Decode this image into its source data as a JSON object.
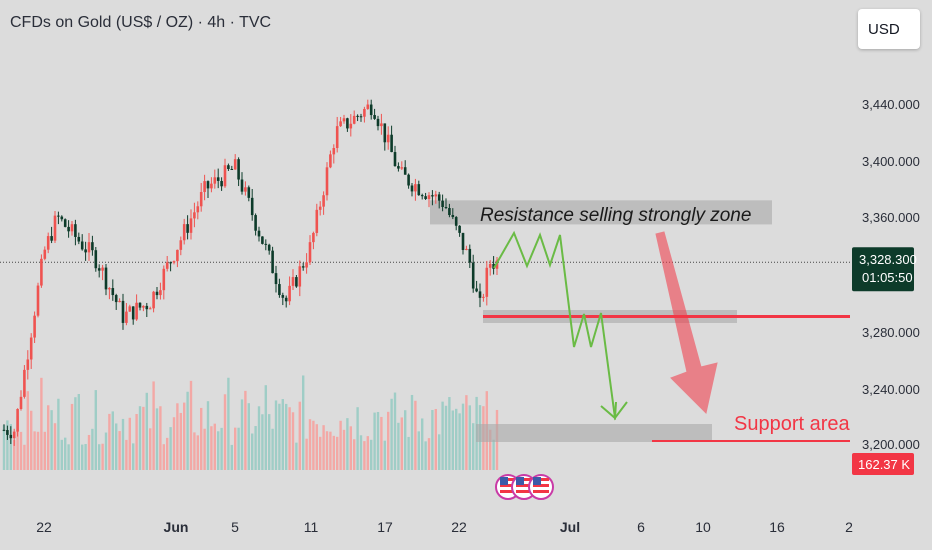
{
  "header": {
    "title": "CFDs on Gold (US$ / OZ) · 4h · TVC",
    "currency_label": "USD"
  },
  "price_axis": {
    "ticks": [
      "3,440.000",
      "3,400.000",
      "3,360.000",
      "3,280.000",
      "3,240.000",
      "3,200.000"
    ],
    "current_price_label": "3,328.300",
    "countdown_label": "01:05:50",
    "volume_label": "162.37 K"
  },
  "time_axis": {
    "ticks": [
      "22",
      "Jun",
      "5",
      "11",
      "17",
      "22",
      "Jul",
      "6",
      "10",
      "16",
      "2"
    ]
  },
  "annotations": {
    "resistance_label": "Resistance selling strongly zone",
    "support_label": "Support area"
  },
  "colors": {
    "up": "#ef5350",
    "down": "#0d3b2a",
    "vol_up": "#f3a8a5",
    "vol_down": "#9fcdc6",
    "forecast": "#6abb45",
    "accent_red": "#f23645"
  },
  "chart_data": {
    "type": "candlestick",
    "title": "CFDs on Gold (US$ / OZ) · 4h · TVC",
    "y_unit": "USD",
    "ylim": [
      3190,
      3480
    ],
    "grid": false,
    "key_points": [
      {
        "x": "May 20",
        "close": 3210
      },
      {
        "x": "May 22",
        "close": 3335
      },
      {
        "x": "May 23",
        "close": 3360
      },
      {
        "x": "May 26",
        "close": 3330
      },
      {
        "x": "May 28",
        "close": 3290
      },
      {
        "x": "May 30",
        "close": 3300
      },
      {
        "x": "Jun 3",
        "close": 3380
      },
      {
        "x": "Jun 5",
        "close": 3395
      },
      {
        "x": "Jun 9",
        "close": 3300
      },
      {
        "x": "Jun 11",
        "close": 3340
      },
      {
        "x": "Jun 13",
        "close": 3420
      },
      {
        "x": "Jun 16",
        "close": 3440
      },
      {
        "x": "Jun 18",
        "close": 3390
      },
      {
        "x": "Jun 21",
        "close": 3370
      },
      {
        "x": "Jun 23",
        "close": 3330
      },
      {
        "x": "Jun 24",
        "close": 3295
      },
      {
        "x": "Jun 25",
        "close": 3328.3
      }
    ],
    "current_price": 3328.3,
    "zones": [
      {
        "label": "Resistance selling strongly zone",
        "low": 3355,
        "high": 3372
      },
      {
        "label": "Support area",
        "low": 3195,
        "high": 3205
      }
    ],
    "level_lines": [
      3290,
      3198
    ]
  }
}
